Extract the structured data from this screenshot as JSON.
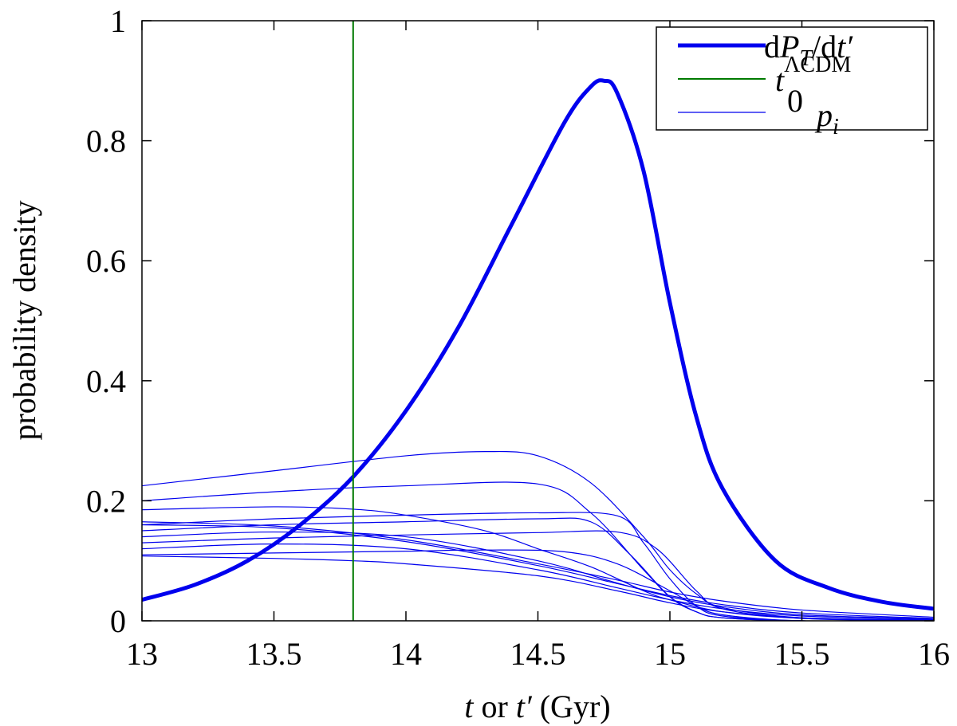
{
  "chart_data": {
    "type": "line",
    "title": "",
    "xlabel": {
      "t": "t",
      "or": " or ",
      "tprime": "t′",
      "unit": " (Gyr)"
    },
    "ylabel": "probability density",
    "xlim": [
      13,
      16
    ],
    "ylim": [
      0,
      1
    ],
    "xticks": [
      "13",
      "13.5",
      "14",
      "14.5",
      "15",
      "15.5",
      "16"
    ],
    "yticks": [
      "0",
      "0.2",
      "0.4",
      "0.6",
      "0.8",
      "1"
    ],
    "grid": false,
    "legend_position": "top-right",
    "legend": [
      {
        "id": "dPT",
        "label": {
          "d1": "d",
          "P": "P",
          "T": "T",
          "slash": "/d",
          "t": "t′"
        },
        "color": "#0000ee",
        "width": "thick"
      },
      {
        "id": "t0",
        "label": {
          "t": "t",
          "sub": "0",
          "sup": "ΛCDM"
        },
        "color": "#007a00",
        "width": "thin"
      },
      {
        "id": "pi",
        "label": {
          "p": "p",
          "sub": "i"
        },
        "color": "#0000ee",
        "width": "thin"
      }
    ],
    "vline": {
      "name": "t0",
      "x": 13.8,
      "color": "#007a00"
    },
    "series": [
      {
        "name": "dPT",
        "color": "#0000ee",
        "width": "thick",
        "x": [
          13.0,
          13.2,
          13.4,
          13.6,
          13.8,
          14.0,
          14.2,
          14.4,
          14.6,
          14.7,
          14.75,
          14.8,
          14.9,
          15.0,
          15.1,
          15.2,
          15.4,
          15.6,
          15.8,
          16.0
        ],
        "y": [
          0.035,
          0.06,
          0.1,
          0.16,
          0.24,
          0.35,
          0.49,
          0.66,
          0.83,
          0.89,
          0.9,
          0.88,
          0.75,
          0.53,
          0.34,
          0.22,
          0.1,
          0.055,
          0.032,
          0.02
        ]
      },
      {
        "name": "p1",
        "color": "#0000ee",
        "width": "thin",
        "x": [
          13.0,
          13.5,
          14.0,
          14.3,
          14.5,
          14.7,
          14.9,
          15.0,
          15.1,
          15.2,
          15.5,
          16.0
        ],
        "y": [
          0.225,
          0.25,
          0.275,
          0.282,
          0.275,
          0.23,
          0.14,
          0.085,
          0.045,
          0.022,
          0.005,
          0.001
        ]
      },
      {
        "name": "p2",
        "color": "#0000ee",
        "width": "thin",
        "x": [
          13.0,
          13.5,
          14.0,
          14.5,
          14.7,
          14.9,
          15.0,
          15.1,
          15.2,
          15.5,
          16.0
        ],
        "y": [
          0.2,
          0.215,
          0.225,
          0.228,
          0.18,
          0.085,
          0.04,
          0.015,
          0.005,
          0.0,
          0.0
        ]
      },
      {
        "name": "p3",
        "color": "#0000ee",
        "width": "thin",
        "x": [
          13.0,
          13.5,
          14.0,
          14.5,
          14.8,
          14.9,
          15.0,
          15.1,
          15.2,
          15.5,
          16.0
        ],
        "y": [
          0.16,
          0.17,
          0.176,
          0.18,
          0.175,
          0.13,
          0.07,
          0.025,
          0.008,
          0.0,
          0.0
        ]
      },
      {
        "name": "p4",
        "color": "#0000ee",
        "width": "thin",
        "x": [
          13.0,
          13.5,
          14.0,
          14.5,
          14.7,
          14.85,
          15.0,
          15.1,
          15.2,
          15.5,
          16.0
        ],
        "y": [
          0.15,
          0.16,
          0.165,
          0.17,
          0.165,
          0.11,
          0.04,
          0.015,
          0.005,
          0.0,
          0.0
        ]
      },
      {
        "name": "p5",
        "color": "#0000ee",
        "width": "thin",
        "x": [
          13.0,
          13.5,
          13.8,
          14.0,
          14.3,
          14.5,
          14.7,
          14.9,
          15.0,
          15.2,
          15.5,
          16.0
        ],
        "y": [
          0.185,
          0.19,
          0.186,
          0.176,
          0.15,
          0.12,
          0.09,
          0.05,
          0.035,
          0.015,
          0.004,
          0.001
        ]
      },
      {
        "name": "p6",
        "color": "#0000ee",
        "width": "thin",
        "x": [
          13.0,
          13.5,
          14.0,
          14.5,
          14.8,
          14.95,
          15.1,
          15.2,
          15.5,
          16.0
        ],
        "y": [
          0.13,
          0.138,
          0.143,
          0.147,
          0.148,
          0.12,
          0.05,
          0.02,
          0.004,
          0.0
        ]
      },
      {
        "name": "p7",
        "color": "#0000ee",
        "width": "thin",
        "x": [
          13.0,
          13.5,
          14.0,
          14.3,
          14.6,
          14.8,
          15.0,
          15.1,
          15.2,
          15.5,
          16.0
        ],
        "y": [
          0.11,
          0.113,
          0.116,
          0.118,
          0.115,
          0.095,
          0.05,
          0.025,
          0.01,
          0.0,
          0.0
        ]
      },
      {
        "name": "p8",
        "color": "#0000ee",
        "width": "thin",
        "x": [
          13.0,
          13.5,
          14.0,
          14.5,
          14.8,
          15.0,
          15.2,
          15.5,
          16.0
        ],
        "y": [
          0.165,
          0.158,
          0.135,
          0.095,
          0.068,
          0.048,
          0.033,
          0.018,
          0.006
        ]
      },
      {
        "name": "p9",
        "color": "#0000ee",
        "width": "thin",
        "x": [
          13.0,
          13.5,
          14.0,
          14.5,
          14.8,
          15.0,
          15.2,
          15.5,
          16.0
        ],
        "y": [
          0.16,
          0.155,
          0.132,
          0.092,
          0.062,
          0.042,
          0.027,
          0.013,
          0.004
        ]
      },
      {
        "name": "p10",
        "color": "#0000ee",
        "width": "thin",
        "x": [
          13.0,
          13.5,
          14.0,
          14.5,
          14.8,
          15.0,
          15.2,
          15.5,
          16.0
        ],
        "y": [
          0.14,
          0.148,
          0.14,
          0.1,
          0.063,
          0.04,
          0.024,
          0.01,
          0.003
        ]
      },
      {
        "name": "p11",
        "color": "#0000ee",
        "width": "thin",
        "x": [
          13.0,
          13.5,
          14.0,
          14.5,
          14.8,
          15.0,
          15.2,
          15.5,
          16.0
        ],
        "y": [
          0.12,
          0.128,
          0.12,
          0.085,
          0.055,
          0.035,
          0.02,
          0.008,
          0.002
        ]
      },
      {
        "name": "p12",
        "color": "#0000ee",
        "width": "thin",
        "x": [
          13.0,
          13.5,
          13.8,
          14.0,
          14.5,
          14.8,
          15.0,
          15.2,
          15.5,
          16.0
        ],
        "y": [
          0.108,
          0.104,
          0.1,
          0.095,
          0.075,
          0.05,
          0.03,
          0.015,
          0.005,
          0.001
        ]
      }
    ]
  }
}
